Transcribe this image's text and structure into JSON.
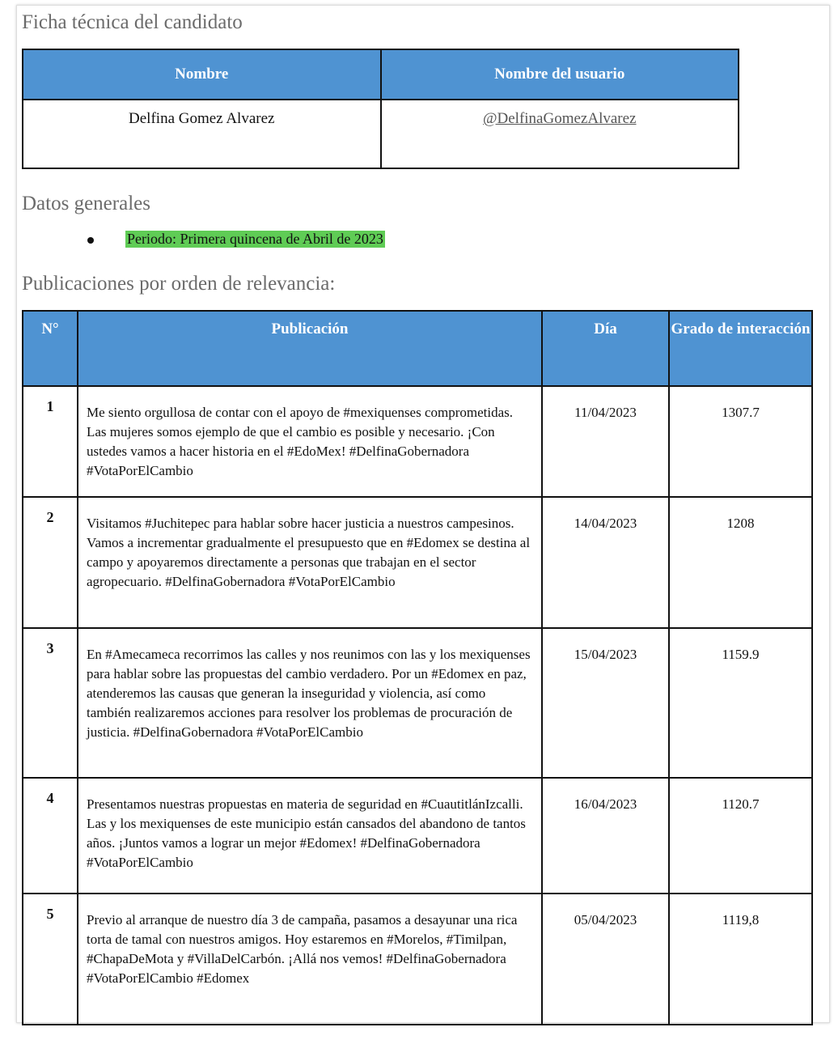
{
  "ficha": {
    "title": "Ficha técnica del candidato",
    "headers": [
      "Nombre",
      "Nombre del usuario"
    ],
    "name": "Delfina Gomez Alvarez",
    "username": "@DelfinaGomezAlvarez"
  },
  "datos": {
    "title": "Datos generales",
    "period": "Periodo: Primera quincena de Abril de 2023",
    "highlight_color": "#5fcc55"
  },
  "publicaciones": {
    "title": "Publicaciones por orden de relevancia:",
    "headers": [
      "N°",
      "Publicación",
      "Día",
      "Grado de interacción"
    ],
    "rows": [
      {
        "n": "1",
        "text": "Me siento orgullosa de contar con el apoyo de #mexiquenses comprometidas. Las mujeres somos ejemplo de que el cambio es posible y necesario. ¡Con ustedes vamos a hacer historia en el #EdoMex! #DelfinaGobernadora #VotaPorElCambio",
        "day": "11/04/2023",
        "grade": "1307.7"
      },
      {
        "n": "2",
        "text": "Visitamos #Juchitepec para hablar sobre hacer justicia a nuestros campesinos. Vamos a incrementar gradualmente el presupuesto que en #Edomex se destina al campo y apoyaremos directamente a personas que trabajan en el sector agropecuario. #DelfinaGobernadora #VotaPorElCambio",
        "day": "14/04/2023",
        "grade": "1208"
      },
      {
        "n": "3",
        "text": "En #Amecameca recorrimos las calles y nos reunimos con las y los mexiquenses para hablar sobre las propuestas del cambio verdadero. Por un #Edomex en paz, atenderemos las causas que generan la inseguridad y violencia, así como también realizaremos acciones para resolver los problemas de procuración de justicia. #DelfinaGobernadora #VotaPorElCambio",
        "day": "15/04/2023",
        "grade": "1159.9"
      },
      {
        "n": "4",
        "text": "Presentamos nuestras propuestas en materia de seguridad en #CuautitlánIzcalli. Las y los mexiquenses de este municipio están cansados del abandono de tantos años. ¡Juntos vamos a lograr un mejor #Edomex! #DelfinaGobernadora #VotaPorElCambio",
        "day": "16/04/2023",
        "grade": "1120.7"
      },
      {
        "n": "5",
        "text": "Previo al arranque de nuestro día 3 de campaña, pasamos a desayunar una rica torta de tamal con nuestros amigos. Hoy estaremos en #Morelos, #Timilpan, #ChapaDeMota y #VillaDelCarbón. ¡Allá nos vemos! #DelfinaGobernadora #VotaPorElCambio #Edomex",
        "day": "05/04/2023",
        "grade": "1119,8"
      }
    ]
  },
  "header_color": "#4f93d2"
}
